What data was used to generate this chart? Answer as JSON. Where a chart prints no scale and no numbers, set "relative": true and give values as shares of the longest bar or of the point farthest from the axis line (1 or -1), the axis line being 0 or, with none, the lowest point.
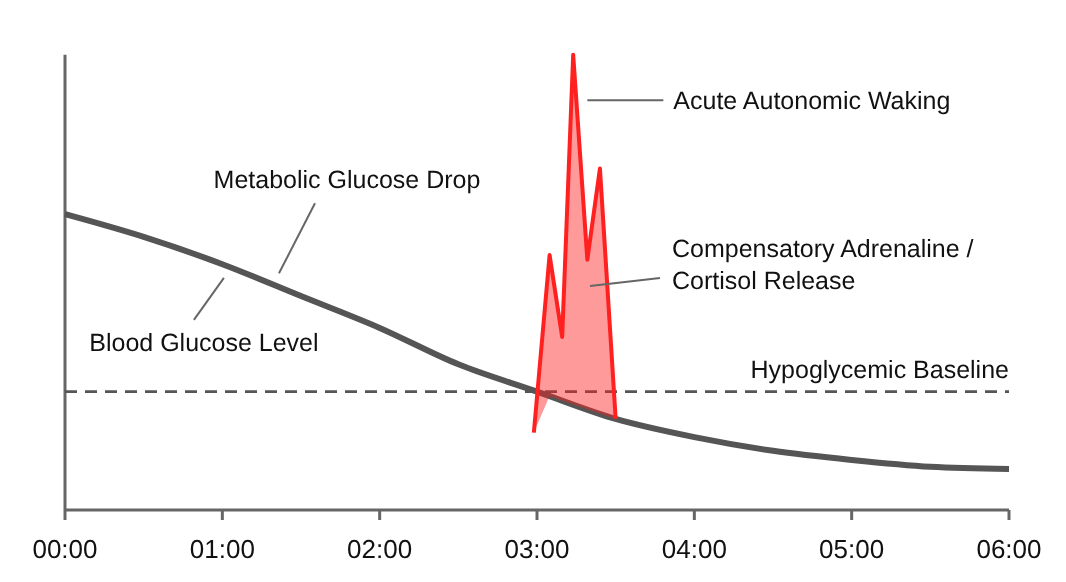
{
  "chart_data": {
    "type": "line",
    "relative": true,
    "x": [
      0,
      0.5,
      1,
      1.5,
      2,
      2.5,
      3,
      3.5,
      4,
      4.5,
      5,
      5.5,
      6
    ],
    "xlim": [
      0,
      6
    ],
    "xticks": [
      {
        "value": 0,
        "label": "00:00"
      },
      {
        "value": 1,
        "label": "01:00"
      },
      {
        "value": 2,
        "label": "02:00"
      },
      {
        "value": 3,
        "label": "03:00"
      },
      {
        "value": 4,
        "label": "04:00"
      },
      {
        "value": 5,
        "label": "05:00"
      },
      {
        "value": 6,
        "label": "06:00"
      }
    ],
    "series": [
      {
        "color": "#555555",
        "values": [
          0.65,
          0.6,
          0.54,
          0.47,
          0.4,
          0.32,
          0.26,
          0.2,
          0.16,
          0.13,
          0.11,
          0.095,
          0.09
        ]
      },
      {
        "type": "area",
        "color": "#ff2020",
        "x": [
          2.98,
          3.08,
          3.16,
          3.23,
          3.32,
          3.4,
          3.5
        ],
        "values": [
          0.17,
          0.56,
          0.38,
          1,
          0.55,
          0.75,
          0.2
        ]
      }
    ],
    "ref_lines": [
      {
        "axis": "y",
        "value": 0.26,
        "label": "Hypoglycemic Baseline",
        "color": "#555555",
        "line_style": "dashed"
      }
    ],
    "annotations": [
      {
        "text": "Metabolic Glucose Drop",
        "x": 1.36,
        "y": 0.52
      },
      {
        "text": "Blood Glucose Level",
        "x": 1.01,
        "y": 0.51
      },
      {
        "text": "Acute Autonomic Waking",
        "x": 3.32,
        "y": 0.9
      },
      "Compensatory Adrenaline /\nCortisol Release"
    ]
  }
}
